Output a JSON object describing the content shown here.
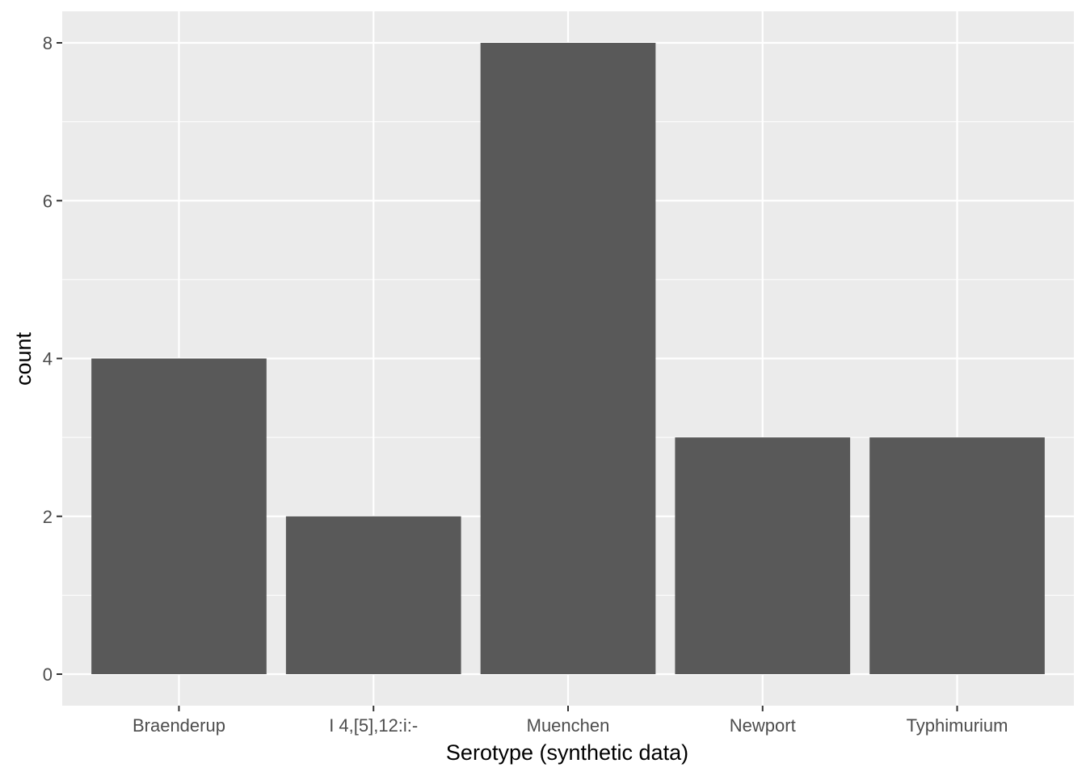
{
  "chart_data": {
    "type": "bar",
    "xlabel": "Serotype (synthetic data)",
    "ylabel": "count",
    "categories": [
      "Braenderup",
      "I 4,[5],12:i:-",
      "Muenchen",
      "Newport",
      "Typhimurium"
    ],
    "values": [
      4,
      2,
      8,
      3,
      3
    ],
    "ylim": [
      0,
      8.4
    ],
    "y_ticks": [
      0,
      2,
      4,
      6,
      8
    ],
    "y_minor_ticks": [
      1,
      3,
      5,
      7
    ],
    "grid": true,
    "legend": "none",
    "colors": {
      "panel_background": "#ebebeb",
      "grid": "#ffffff",
      "bar_fill": "#595959",
      "tick": "#333333",
      "tick_label": "#4d4d4d",
      "axis_title": "#000000"
    }
  }
}
